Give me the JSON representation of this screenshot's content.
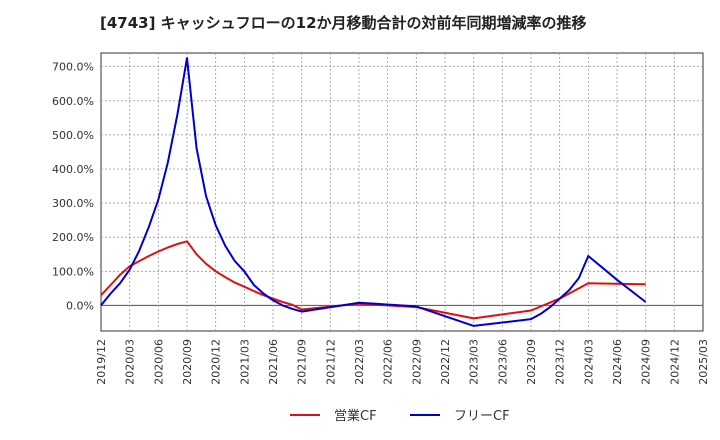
{
  "chart_data": {
    "type": "line",
    "title": "[4743]  キャッシュフローの12か月移動合計の対前年同期増減率の推移",
    "xlabel": "",
    "ylabel": "",
    "ylim": [
      -75,
      740
    ],
    "y_ticks": [
      0,
      100,
      200,
      300,
      400,
      500,
      600,
      700
    ],
    "y_tick_labels": [
      "0.0%",
      "100.0%",
      "200.0%",
      "300.0%",
      "400.0%",
      "500.0%",
      "600.0%",
      "700.0%"
    ],
    "x_tick_labels": [
      "2019/12",
      "2020/03",
      "2020/06",
      "2020/09",
      "2020/12",
      "2021/03",
      "2021/06",
      "2021/09",
      "2021/12",
      "2022/03",
      "2022/06",
      "2022/09",
      "2022/12",
      "2023/03",
      "2023/06",
      "2023/09",
      "2023/12",
      "2024/03",
      "2024/06",
      "2024/09",
      "2024/12",
      "2025/03"
    ],
    "grid": true,
    "legend_position": "bottom",
    "series": [
      {
        "name": "営業CF",
        "color": "#dd1111",
        "x": [
          "2019/12",
          "2020/01",
          "2020/02",
          "2020/03",
          "2020/04",
          "2020/05",
          "2020/06",
          "2020/07",
          "2020/08",
          "2020/09",
          "2020/10",
          "2020/11",
          "2020/12",
          "2021/01",
          "2021/02",
          "2021/03",
          "2021/04",
          "2021/05",
          "2021/06",
          "2021/07",
          "2021/08",
          "2021/09",
          "2022/03",
          "2022/09",
          "2023/03",
          "2023/09",
          "2023/12",
          "2024/03",
          "2024/09"
        ],
        "values": [
          30,
          60,
          90,
          115,
          130,
          145,
          158,
          170,
          180,
          188,
          150,
          122,
          100,
          83,
          67,
          55,
          42,
          30,
          20,
          10,
          2,
          -12,
          5,
          -5,
          -38,
          -15,
          20,
          65,
          62
        ]
      },
      {
        "name": "フリーCF",
        "color": "#0000cc",
        "x": [
          "2019/12",
          "2020/01",
          "2020/02",
          "2020/03",
          "2020/04",
          "2020/05",
          "2020/06",
          "2020/07",
          "2020/08",
          "2020/09",
          "2020/10",
          "2020/11",
          "2020/12",
          "2021/01",
          "2021/02",
          "2021/03",
          "2021/04",
          "2021/05",
          "2021/06",
          "2021/07",
          "2021/08",
          "2021/09",
          "2022/03",
          "2022/09",
          "2023/03",
          "2023/09",
          "2023/10",
          "2023/11",
          "2023/12",
          "2024/01",
          "2024/02",
          "2024/03",
          "2024/06",
          "2024/09"
        ],
        "values": [
          0,
          35,
          65,
          105,
          160,
          230,
          310,
          420,
          560,
          725,
          460,
          320,
          235,
          175,
          130,
          100,
          60,
          35,
          15,
          0,
          -10,
          -18,
          8,
          -3,
          -60,
          -40,
          -25,
          -5,
          20,
          45,
          80,
          145,
          75,
          10
        ]
      }
    ]
  }
}
